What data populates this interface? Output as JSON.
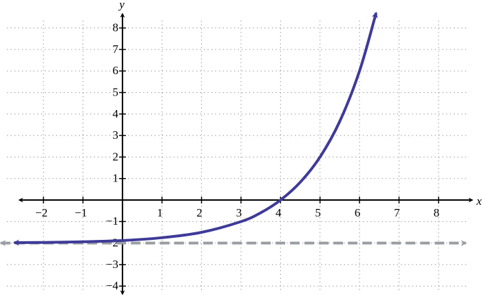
{
  "chart_data": {
    "type": "line",
    "xlabel": "x",
    "ylabel": "y",
    "xlim": [
      -3.1,
      9.1
    ],
    "ylim": [
      -4.6,
      9.3
    ],
    "xticks": [
      {
        "value": -2,
        "label": "−2"
      },
      {
        "value": -1,
        "label": "−1"
      },
      1,
      2,
      3,
      4,
      5,
      6,
      7,
      8
    ],
    "yticks": [
      {
        "value": -4,
        "label": "−4"
      },
      {
        "value": -3,
        "label": "−3"
      },
      {
        "value": -2,
        "label": "−2"
      },
      {
        "value": -1,
        "label": "−1"
      },
      1,
      2,
      3,
      4,
      5,
      6,
      7,
      8
    ],
    "grid": true,
    "series": [
      {
        "color": "#3e3b98",
        "x": [
          -2.74,
          -2,
          -1,
          0,
          1,
          2,
          3,
          3.5,
          4,
          4.5,
          5,
          5.5,
          6,
          6.42
        ],
        "values": [
          -1.98,
          -1.97,
          -1.94,
          -1.88,
          -1.75,
          -1.5,
          -1,
          -0.59,
          0,
          0.83,
          2,
          3.66,
          6,
          8.7
        ]
      },
      {
        "color": "#9a9ea3",
        "dashed": true,
        "x": [
          -3.08,
          8.69
        ],
        "values": [
          -2,
          -2
        ]
      }
    ]
  }
}
